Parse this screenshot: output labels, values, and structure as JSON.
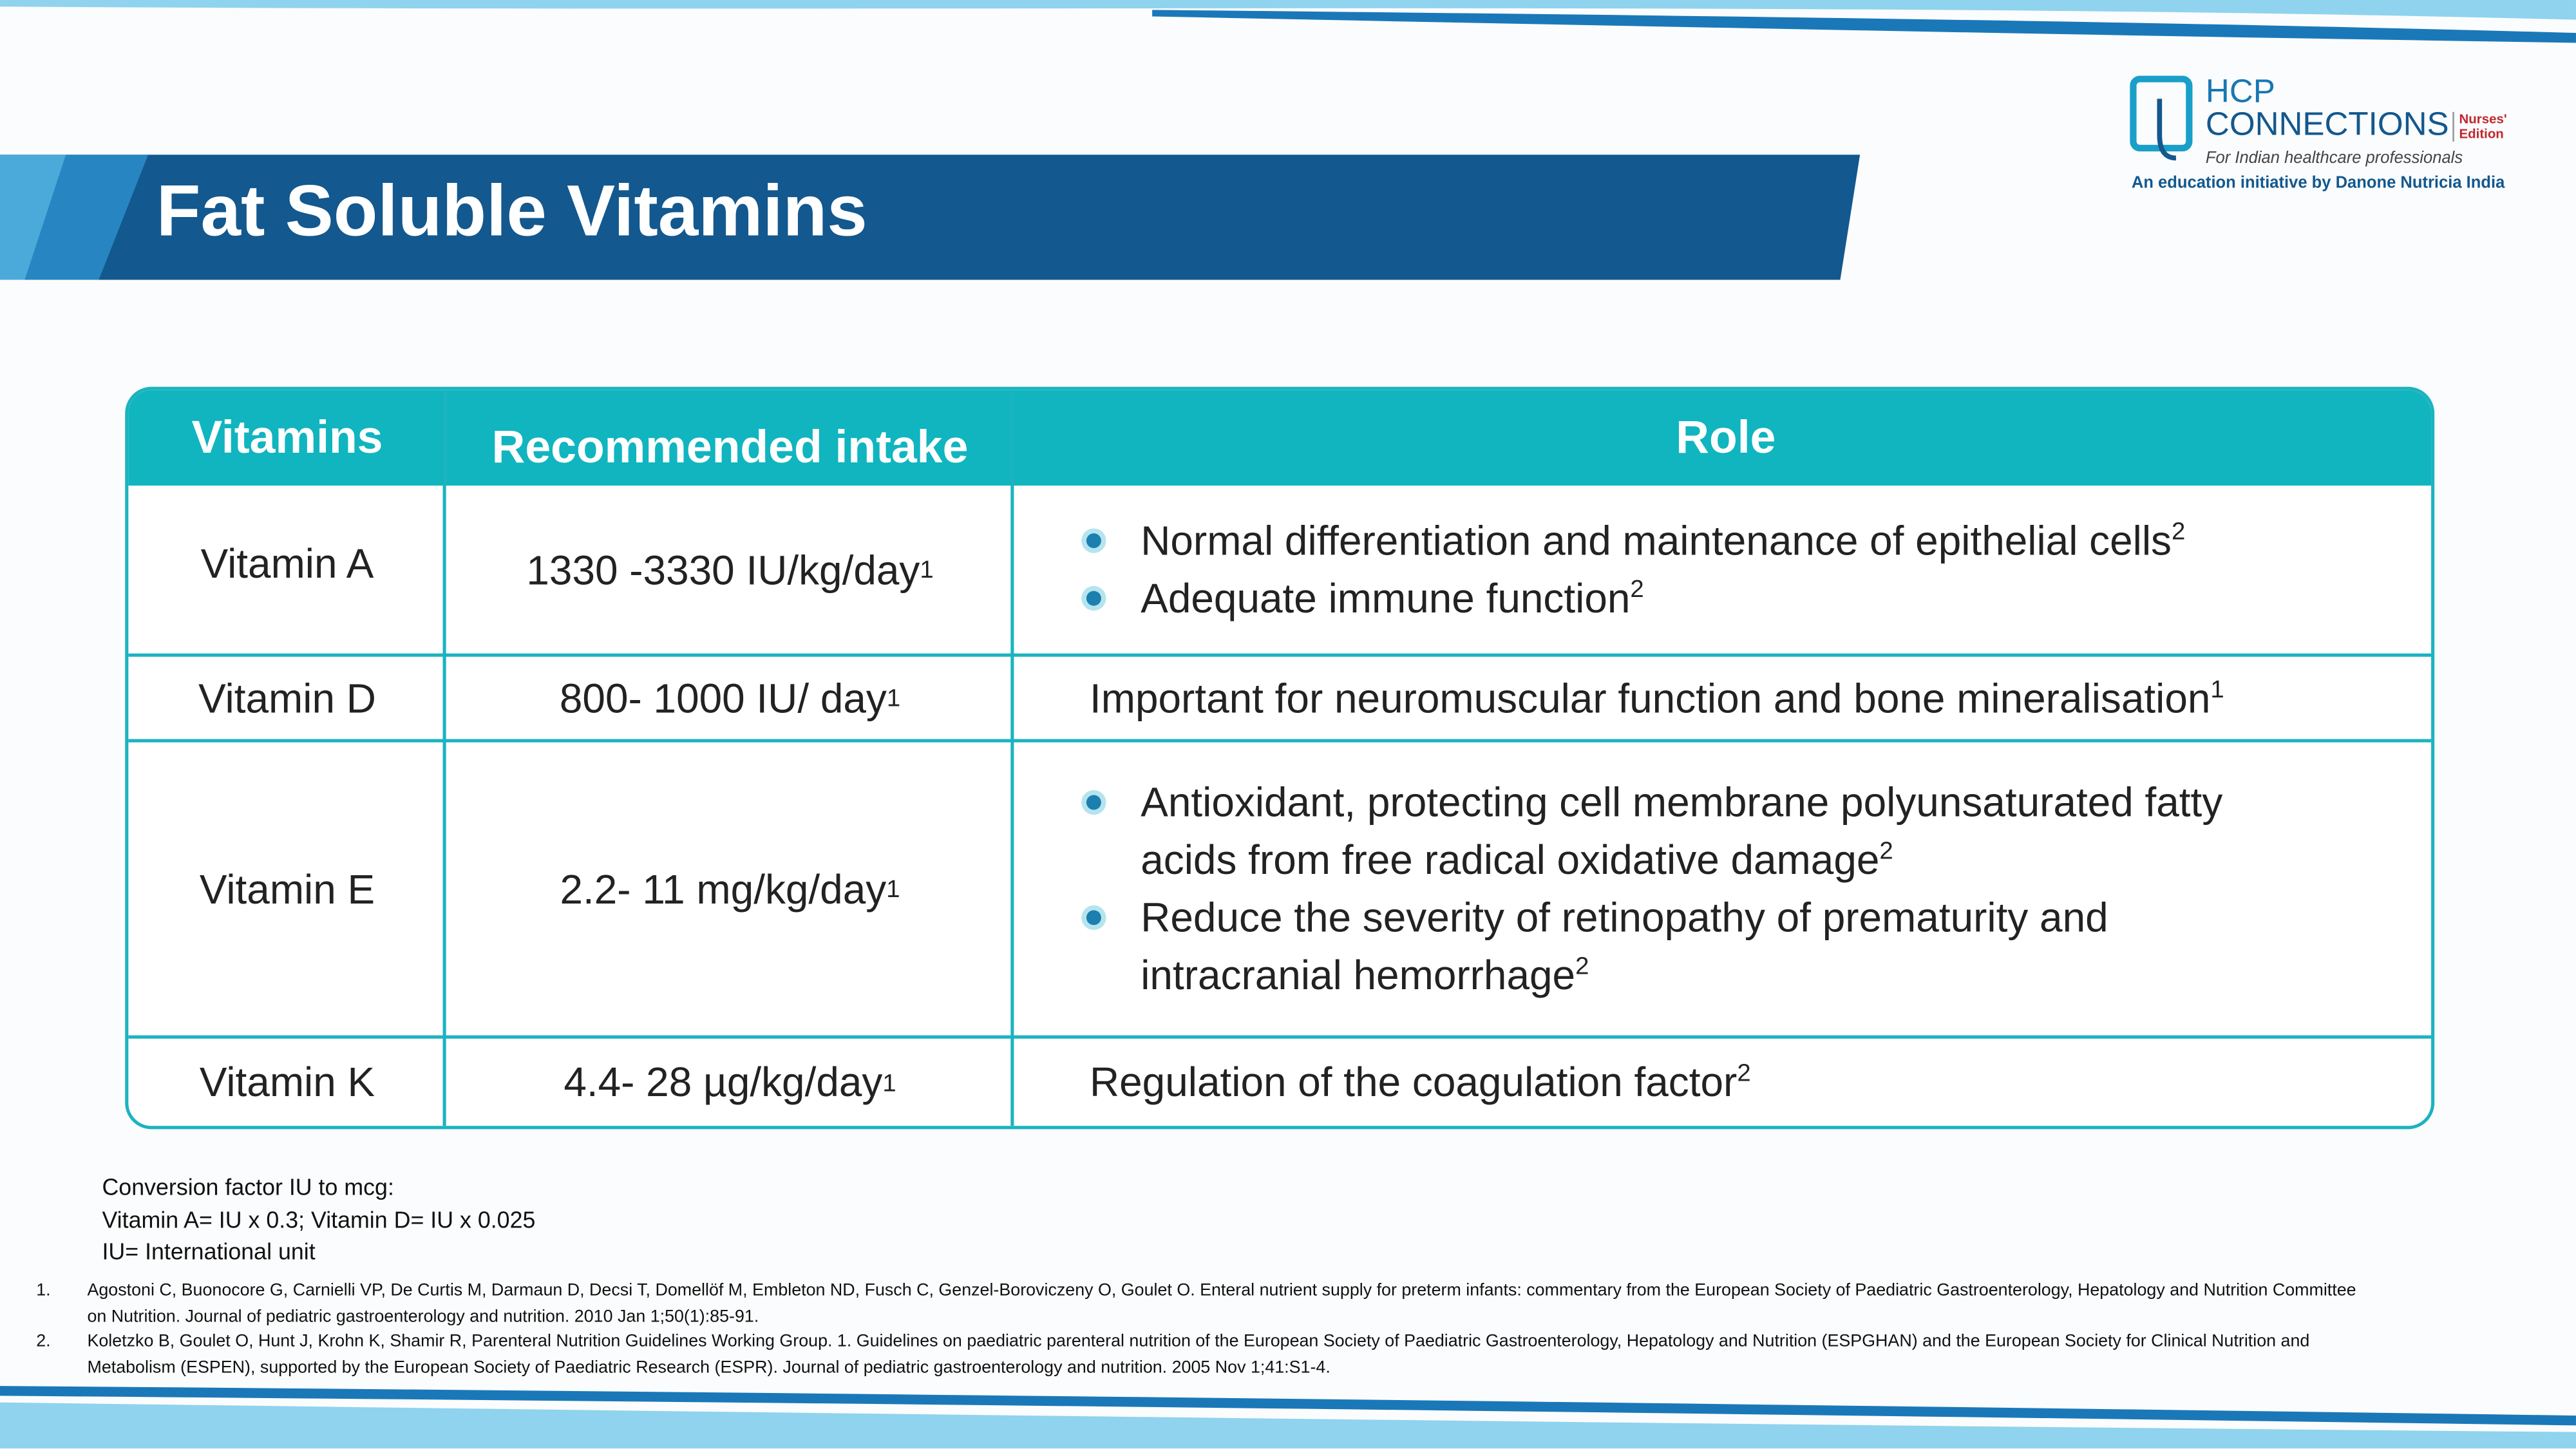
{
  "header": {
    "title": "Fat Soluble Vitamins"
  },
  "logo": {
    "line1": "HCP",
    "line2": "CONNECTIONS",
    "edition": "Nurses' Edition",
    "tagline": "For Indian healthcare professionals",
    "initiative": "An education initiative by Danone Nutricia India"
  },
  "table": {
    "headers": [
      "Vitamins",
      "Recommended intake",
      "Role"
    ],
    "rows": [
      {
        "vitamin": "Vitamin A",
        "intake": {
          "text": "1330 -3330 IU/kg/day",
          "ref": "1"
        },
        "role": [
          {
            "text": "Normal differentiation and maintenance of epithelial cells",
            "ref": "2"
          },
          {
            "text": "Adequate immune function",
            "ref": "2"
          }
        ]
      },
      {
        "vitamin": "Vitamin D",
        "intake": {
          "text": "800- 1000 IU/ day",
          "ref": "1"
        },
        "role": [
          {
            "text": "Important for neuromuscular function and bone mineralisation",
            "ref": "1"
          }
        ]
      },
      {
        "vitamin": "Vitamin E",
        "intake": {
          "text": "2.2- 11 mg/kg/day",
          "ref": "1"
        },
        "role": [
          {
            "text": "Antioxidant, protecting cell membrane polyunsaturated fatty acids from free radical oxidative damage",
            "ref": "2"
          },
          {
            "text": "Reduce the severity of retinopathy of prematurity and intracranial hemorrhage",
            "ref": "2"
          }
        ]
      },
      {
        "vitamin": "Vitamin K",
        "intake": {
          "text": "4.4- 28 µg/kg/day",
          "ref": "1"
        },
        "role": [
          {
            "text": "Regulation of the coagulation factor",
            "ref": "2"
          }
        ]
      }
    ]
  },
  "notes": [
    "Conversion factor IU to mcg:",
    "Vitamin A= IU x 0.3; Vitamin D= IU x 0.025",
    "IU= International unit"
  ],
  "references": [
    {
      "number": "1.",
      "text": "Agostoni C, Buonocore G, Carnielli VP, De Curtis M, Darmaun D, Decsi T, Domellöf M, Embleton ND, Fusch C, Genzel-Boroviczeny O, Goulet O. Enteral nutrient supply for preterm infants: commentary from the European Society of Paediatric Gastroenterology, Hepatology and Nutrition Committee on Nutrition. Journal of pediatric gastroenterology and nutrition. 2010 Jan 1;50(1):85-91."
    },
    {
      "number": "2.",
      "text": "Koletzko B, Goulet O, Hunt J, Krohn K, Shamir R, Parenteral Nutrition Guidelines Working Group. 1. Guidelines on paediatric parenteral nutrition of the European Society of Paediatric Gastroenterology, Hepatology and Nutrition (ESPGHAN) and the European Society for Clinical Nutrition and Metabolism (ESPEN), supported by the European Society of Paediatric Research (ESPR). Journal of pediatric gastroenterology and nutrition. 2005 Nov 1;41:S1-4."
    }
  ]
}
